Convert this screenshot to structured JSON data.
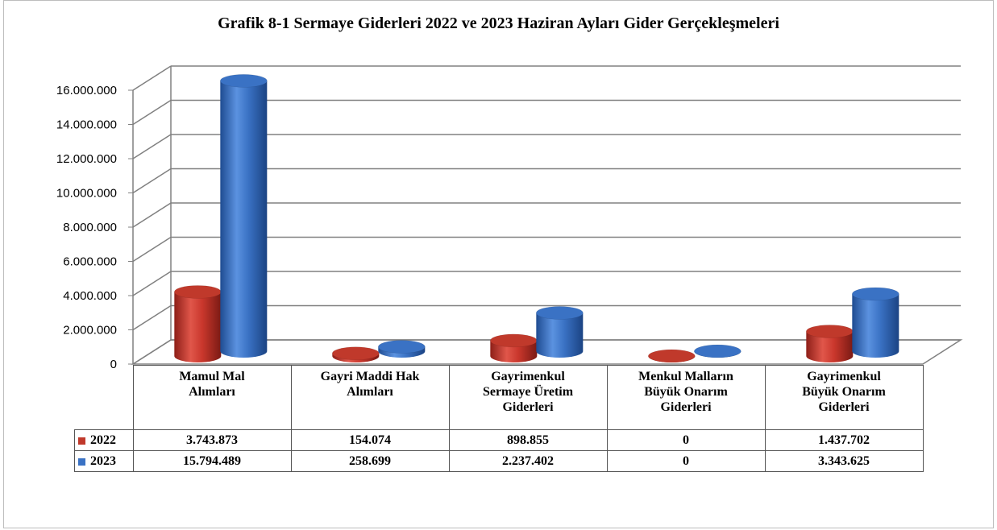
{
  "chart_data": {
    "type": "bar",
    "title": "Grafik 8-1 Sermaye Giderleri  2022 ve 2023 Haziran Ayları Gider Gerçekleşmeleri",
    "categories": [
      "Mamul Mal\nAlımları",
      "Gayri Maddi Hak\nAlımları",
      "Gayrimenkul\nSermaye Üretim\nGiderleri",
      "Menkul Malların\nBüyük Onarım\nGiderleri",
      "Gayrimenkul\nBüyük Onarım\nGiderleri"
    ],
    "series": [
      {
        "name": "2022",
        "color": "#c0392b",
        "values": [
          3743873,
          154074,
          898855,
          0,
          1437702
        ],
        "labels": [
          "3.743.873",
          "154.074",
          "898.855",
          "0",
          "1.437.702"
        ]
      },
      {
        "name": "2023",
        "color": "#3a72c4",
        "values": [
          15794489,
          258699,
          2237402,
          0,
          3343625
        ],
        "labels": [
          "15.794.489",
          "258.699",
          "2.237.402",
          "0",
          "3.343.625"
        ]
      }
    ],
    "yticks": [
      "0",
      "2.000.000",
      "4.000.000",
      "6.000.000",
      "8.000.000",
      "10.000.000",
      "12.000.000",
      "14.000.000",
      "16.000.000"
    ],
    "ylim": [
      0,
      16000000
    ],
    "grid": true,
    "legend": "data table"
  }
}
